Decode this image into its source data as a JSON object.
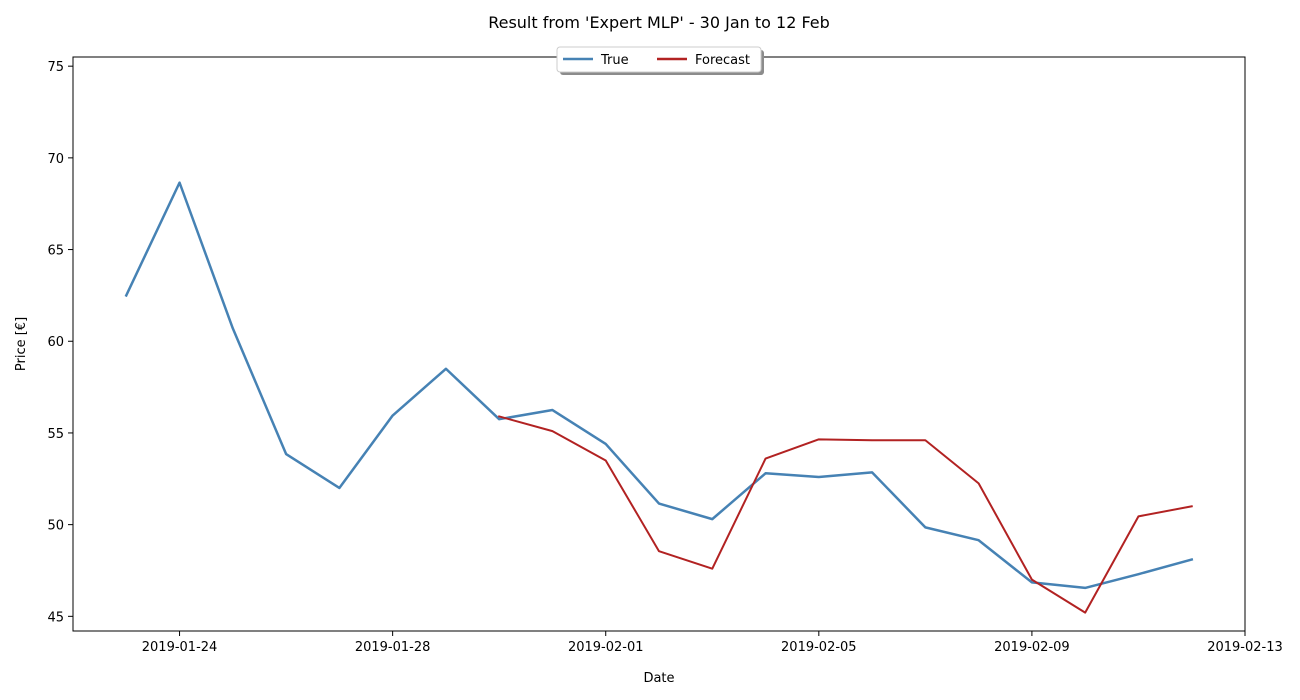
{
  "chart_data": {
    "type": "line",
    "title": "Result from 'Expert MLP' - 30 Jan to 12 Feb",
    "xlabel": "Date",
    "ylabel": "Price [€]",
    "xlim": [
      "2019-01-22",
      "2019-02-13"
    ],
    "ylim": [
      44.2,
      75.5
    ],
    "xticks": [
      "2019-01-24",
      "2019-01-28",
      "2019-02-01",
      "2019-02-05",
      "2019-02-09",
      "2019-02-13"
    ],
    "yticks": [
      45,
      50,
      55,
      60,
      65,
      70,
      75
    ],
    "grid": false,
    "legend_position": "top-center",
    "series": [
      {
        "name": "True",
        "color": "#4682b4",
        "x": [
          "2019-01-23",
          "2019-01-24",
          "2019-01-25",
          "2019-01-26",
          "2019-01-27",
          "2019-01-28",
          "2019-01-29",
          "2019-01-30",
          "2019-01-31",
          "2019-02-01",
          "2019-02-02",
          "2019-02-03",
          "2019-02-04",
          "2019-02-05",
          "2019-02-06",
          "2019-02-07",
          "2019-02-08",
          "2019-02-09",
          "2019-02-10",
          "2019-02-11",
          "2019-02-12"
        ],
        "values": [
          62.5,
          68.65,
          60.7,
          53.85,
          52.0,
          55.95,
          58.5,
          55.75,
          56.25,
          54.4,
          51.15,
          50.3,
          52.8,
          52.6,
          52.85,
          49.85,
          49.15,
          46.85,
          46.55,
          47.3,
          48.1
        ]
      },
      {
        "name": "Forecast",
        "color": "#b22222",
        "x": [
          "2019-01-30",
          "2019-01-31",
          "2019-02-01",
          "2019-02-02",
          "2019-02-03",
          "2019-02-04",
          "2019-02-05",
          "2019-02-06",
          "2019-02-07",
          "2019-02-08",
          "2019-02-09",
          "2019-02-10",
          "2019-02-11",
          "2019-02-12"
        ],
        "values": [
          55.9,
          55.1,
          53.5,
          48.55,
          47.6,
          53.6,
          54.65,
          54.6,
          54.6,
          52.25,
          47.0,
          45.2,
          50.45,
          51.0
        ]
      }
    ]
  }
}
